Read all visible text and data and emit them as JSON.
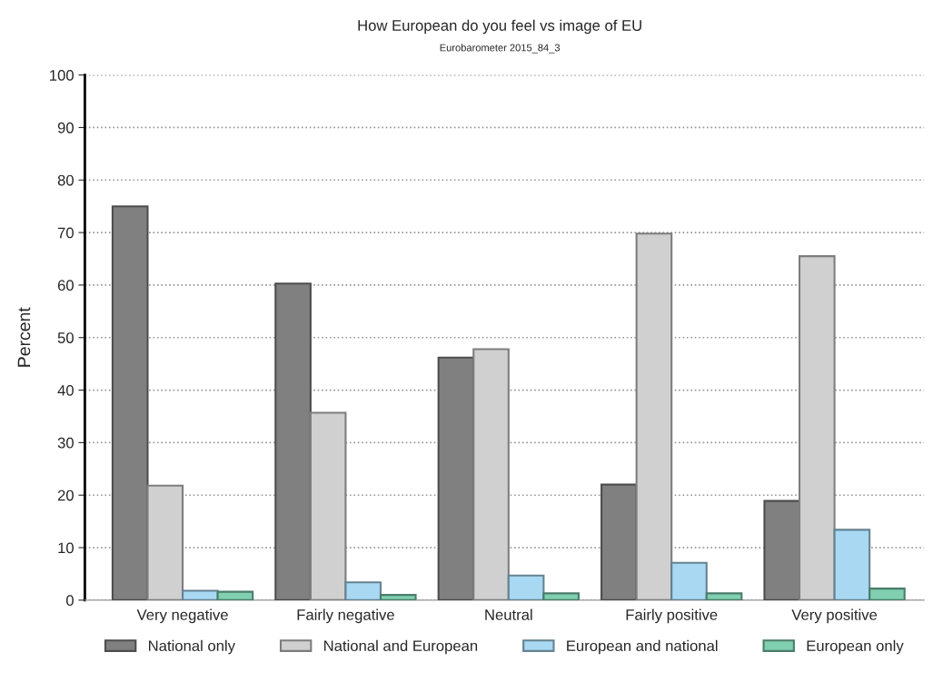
{
  "chart_data": {
    "type": "bar",
    "title": "How European do you feel vs image of EU",
    "subtitle": "Eurobarometer 2015_84_3",
    "ylabel": "Percent",
    "categories": [
      "Very negative",
      "Fairly negative",
      "Neutral",
      "Fairly positive",
      "Very positive"
    ],
    "series": [
      {
        "name": "National only",
        "color": "#808080",
        "values": [
          75.0,
          60.3,
          46.2,
          22.0,
          18.9
        ]
      },
      {
        "name": "National and European",
        "color": "#d0d0d0",
        "values": [
          21.8,
          35.7,
          47.8,
          69.8,
          65.5
        ]
      },
      {
        "name": "European and national",
        "color": "#a8d8f2",
        "values": [
          1.8,
          3.4,
          4.7,
          7.1,
          13.4
        ]
      },
      {
        "name": "European only",
        "color": "#7fcfb0",
        "values": [
          1.6,
          1.0,
          1.3,
          1.3,
          2.2
        ]
      }
    ],
    "ylim": [
      0,
      100
    ],
    "yticks": [
      0,
      10,
      20,
      30,
      40,
      50,
      60,
      70,
      80,
      90,
      100
    ],
    "grid": "y",
    "legend": "bottom"
  }
}
